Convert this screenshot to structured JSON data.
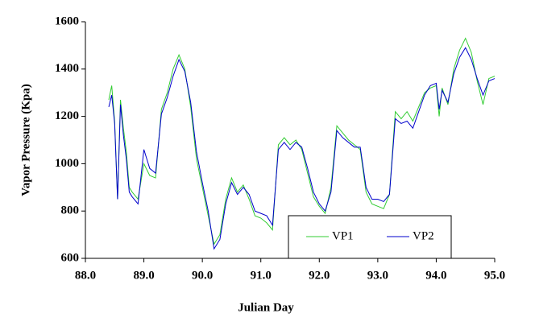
{
  "chart_data": {
    "type": "line",
    "x_label": "Julian Day",
    "y_label": "Vapor Pressure (Kpa)",
    "x": [
      88.4,
      88.45,
      88.5,
      88.55,
      88.6,
      88.65,
      88.7,
      88.75,
      88.8,
      88.9,
      89.0,
      89.1,
      89.2,
      89.3,
      89.4,
      89.5,
      89.6,
      89.7,
      89.8,
      89.9,
      90.0,
      90.1,
      90.2,
      90.3,
      90.4,
      90.5,
      90.6,
      90.7,
      90.8,
      90.9,
      91.0,
      91.1,
      91.2,
      91.3,
      91.4,
      91.5,
      91.6,
      91.7,
      91.8,
      91.9,
      92.0,
      92.1,
      92.2,
      92.3,
      92.4,
      92.5,
      92.6,
      92.7,
      92.8,
      92.9,
      93.0,
      93.1,
      93.2,
      93.3,
      93.4,
      93.5,
      93.6,
      93.7,
      93.8,
      93.9,
      94.0,
      94.05,
      94.1,
      94.2,
      94.3,
      94.4,
      94.5,
      94.6,
      94.7,
      94.8,
      94.9,
      95.0
    ],
    "series": [
      {
        "name": "VP1",
        "color": "#33cc33",
        "values": [
          1270,
          1330,
          1180,
          850,
          1270,
          1150,
          1050,
          900,
          880,
          850,
          1000,
          950,
          940,
          1230,
          1300,
          1400,
          1460,
          1400,
          1240,
          1020,
          900,
          780,
          660,
          700,
          850,
          940,
          880,
          910,
          850,
          780,
          770,
          750,
          720,
          1080,
          1110,
          1080,
          1100,
          1060,
          960,
          860,
          820,
          790,
          900,
          1160,
          1130,
          1100,
          1080,
          1060,
          880,
          830,
          820,
          810,
          870,
          1220,
          1190,
          1220,
          1180,
          1240,
          1300,
          1320,
          1330,
          1200,
          1320,
          1250,
          1400,
          1480,
          1530,
          1470,
          1350,
          1250,
          1360,
          1370
        ]
      },
      {
        "name": "VP2",
        "color": "#0000cc",
        "values": [
          1240,
          1290,
          1170,
          850,
          1250,
          1120,
          1020,
          880,
          860,
          830,
          1060,
          980,
          960,
          1210,
          1280,
          1370,
          1440,
          1390,
          1260,
          1050,
          920,
          800,
          640,
          680,
          830,
          920,
          870,
          900,
          870,
          800,
          790,
          780,
          740,
          1060,
          1090,
          1060,
          1090,
          1070,
          980,
          880,
          830,
          800,
          880,
          1140,
          1110,
          1090,
          1070,
          1070,
          900,
          850,
          850,
          840,
          870,
          1190,
          1170,
          1180,
          1150,
          1220,
          1290,
          1330,
          1340,
          1230,
          1310,
          1260,
          1380,
          1450,
          1490,
          1440,
          1360,
          1290,
          1350,
          1360
        ]
      }
    ],
    "xlim": [
      88.0,
      95.0
    ],
    "xticks": [
      {
        "value": 88,
        "label": "88.0"
      },
      {
        "value": 89,
        "label": "89.0"
      },
      {
        "value": 90,
        "label": "90.0"
      },
      {
        "value": 91,
        "label": "91.0"
      },
      {
        "value": 92,
        "label": "92.0"
      },
      {
        "value": 93,
        "label": "93.0"
      },
      {
        "value": 94,
        "label": "94.0"
      },
      {
        "value": 95,
        "label": "95.0"
      }
    ],
    "ylim": [
      600,
      1600
    ],
    "yticks": [
      600,
      800,
      1000,
      1200,
      1400,
      1600
    ]
  }
}
